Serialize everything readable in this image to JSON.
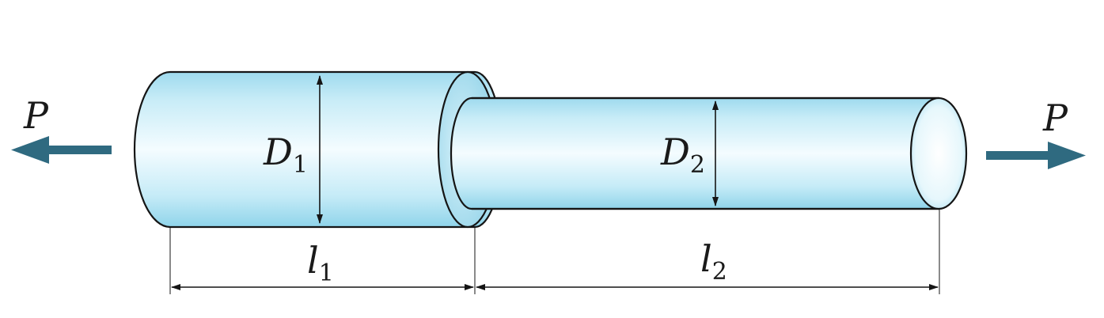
{
  "labels": {
    "force_left": "P",
    "force_right": "P",
    "diameter_1_main": "D",
    "diameter_1_sub": "1",
    "diameter_2_main": "D",
    "diameter_2_sub": "2",
    "length_1_main": "l",
    "length_1_sub": "1",
    "length_2_main": "l",
    "length_2_sub": "2"
  },
  "colors": {
    "cylinder_light": "#f2fbfe",
    "cylinder_mid": "#bfe8f5",
    "cylinder_dark": "#8fd6ec",
    "arrow": "#2f6a80",
    "outline": "#151515"
  }
}
